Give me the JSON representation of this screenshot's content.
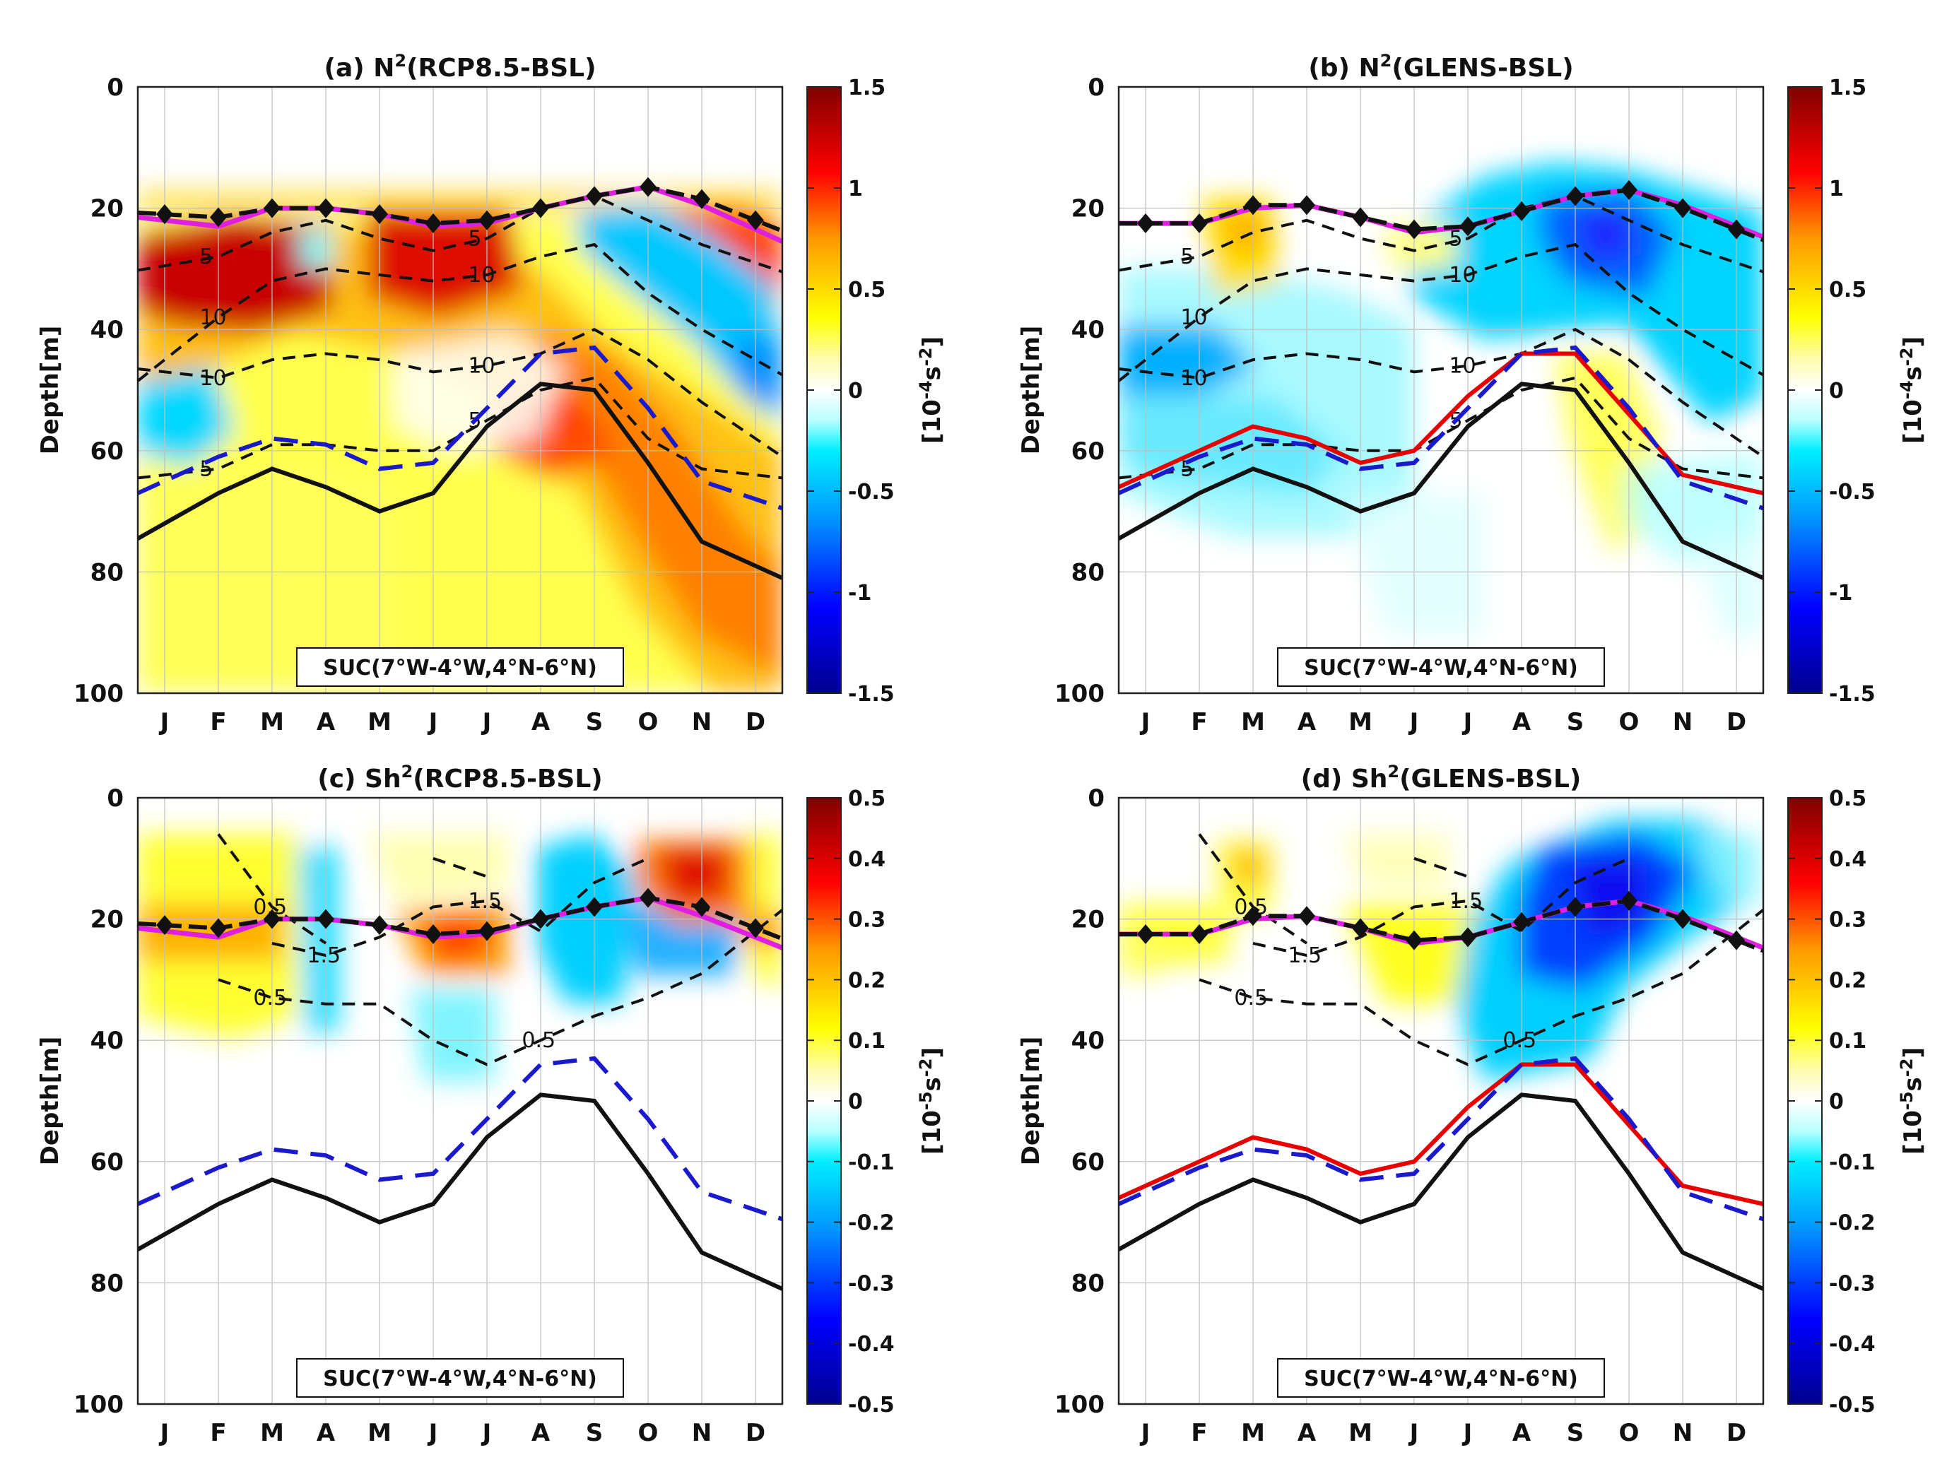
{
  "chart_data": [
    {
      "type": "heatmap",
      "id": "a",
      "title": "(a) N",
      "title_sup": "2",
      "title_rest": "(RCP8.5-BSL)",
      "ylabel": "Depth[m]",
      "months": [
        "J",
        "F",
        "M",
        "A",
        "M",
        "J",
        "J",
        "A",
        "S",
        "O",
        "N",
        "D"
      ],
      "yticks": [
        "0",
        "20",
        "40",
        "60",
        "80",
        "100"
      ],
      "ylim": [
        0,
        100
      ],
      "colorbar": {
        "ticks": [
          "1.5",
          "1",
          "0.5",
          "0",
          "-0.5",
          "-1",
          "-1.5"
        ],
        "range": [
          -1.5,
          1.5
        ],
        "unit_base": "[10",
        "unit_exp": "-4",
        "unit_s": "s",
        "unit_exp2": "-2",
        "unit_close": "]"
      },
      "region_label": "SUC(7°W-4°W,4°N-6°N)",
      "mld_line": [
        21,
        21.5,
        20,
        20,
        21,
        22.5,
        22,
        20,
        18,
        16.5,
        18.5,
        22
      ],
      "mld_magenta": [
        22,
        23,
        20,
        20,
        21,
        23,
        22.5,
        20,
        18,
        16.5,
        19.5,
        23.5
      ],
      "black_line": [
        72,
        67,
        63,
        66,
        70,
        67,
        56,
        49,
        50,
        62,
        75,
        79
      ],
      "blue_dashed": [
        65,
        61,
        58,
        59,
        63,
        62,
        53,
        44,
        43,
        53,
        65,
        68
      ],
      "red_line": null,
      "contours": [
        {
          "label": "5",
          "values": [
            29.5,
            28,
            24,
            22,
            25,
            27,
            25,
            20,
            18,
            22,
            26,
            29
          ]
        },
        {
          "label": "10",
          "values": [
            45,
            38,
            32,
            30,
            31,
            32,
            31,
            28,
            26,
            34,
            40,
            45
          ]
        },
        {
          "label": "10",
          "values": [
            47,
            48,
            45,
            44,
            45,
            47,
            46,
            44,
            40,
            45,
            52,
            58
          ]
        },
        {
          "label": "5",
          "values": [
            64,
            63,
            59,
            59,
            60,
            60,
            55,
            50,
            48,
            58,
            63,
            64
          ]
        }
      ]
    },
    {
      "type": "heatmap",
      "id": "b",
      "title": "(b) N",
      "title_sup": "2",
      "title_rest": "(GLENS-BSL)",
      "ylabel": "Depth[m]",
      "months": [
        "J",
        "F",
        "M",
        "A",
        "M",
        "J",
        "J",
        "A",
        "S",
        "O",
        "N",
        "D"
      ],
      "yticks": [
        "0",
        "20",
        "40",
        "60",
        "80",
        "100"
      ],
      "ylim": [
        0,
        100
      ],
      "colorbar": {
        "ticks": [
          "1.5",
          "1",
          "0.5",
          "0",
          "-0.5",
          "-1",
          "-1.5"
        ],
        "range": [
          -1.5,
          1.5
        ],
        "unit_base": "[10",
        "unit_exp": "-4",
        "unit_s": "s",
        "unit_exp2": "-2",
        "unit_close": "]"
      },
      "region_label": "SUC(7°W-4°W,4°N-6°N)",
      "mld_line": [
        22.5,
        22.5,
        19.5,
        19.5,
        21.5,
        23.5,
        23,
        20.5,
        18,
        17,
        20,
        23.5
      ],
      "mld_magenta": [
        22.5,
        22.5,
        20,
        19.5,
        21.5,
        24,
        23,
        20.5,
        18,
        17,
        19.5,
        23
      ],
      "black_line": [
        72,
        67,
        63,
        66,
        70,
        67,
        56,
        49,
        50,
        62,
        75,
        79
      ],
      "blue_dashed": [
        65,
        61,
        58,
        59,
        63,
        62,
        53,
        44,
        43,
        53,
        65,
        68
      ],
      "red_line": [
        64,
        60,
        56,
        58,
        62,
        60,
        51,
        44,
        44,
        54,
        64,
        66
      ],
      "contours": [
        {
          "label": "5",
          "values": [
            29.5,
            28,
            24,
            22,
            25,
            27,
            25,
            20,
            18,
            22,
            26,
            29
          ]
        },
        {
          "label": "10",
          "values": [
            45,
            38,
            32,
            30,
            31,
            32,
            31,
            28,
            26,
            34,
            40,
            45
          ]
        },
        {
          "label": "10",
          "values": [
            47,
            48,
            45,
            44,
            45,
            47,
            46,
            44,
            40,
            45,
            52,
            58
          ]
        },
        {
          "label": "5",
          "values": [
            64,
            63,
            59,
            59,
            60,
            60,
            55,
            50,
            48,
            58,
            63,
            64
          ]
        }
      ]
    },
    {
      "type": "heatmap",
      "id": "c",
      "title": "(c) Sh",
      "title_sup": "2",
      "title_rest": "(RCP8.5-BSL)",
      "ylabel": "Depth[m]",
      "months": [
        "J",
        "F",
        "M",
        "A",
        "M",
        "J",
        "J",
        "A",
        "S",
        "O",
        "N",
        "D"
      ],
      "yticks": [
        "0",
        "20",
        "40",
        "60",
        "80",
        "100"
      ],
      "ylim": [
        0,
        100
      ],
      "colorbar": {
        "ticks": [
          "0.5",
          "0.4",
          "0.3",
          "0.2",
          "0.1",
          "0",
          "-0.1",
          "-0.2",
          "-0.3",
          "-0.4",
          "-0.5"
        ],
        "range": [
          -0.5,
          0.5
        ],
        "unit_base": "[10",
        "unit_exp": "-5",
        "unit_s": "s",
        "unit_exp2": "-2",
        "unit_close": "]"
      },
      "region_label": "SUC(7°W-4°W,4°N-6°N)",
      "mld_line": [
        21,
        21.5,
        20,
        20,
        21,
        22.5,
        22,
        20,
        18,
        16.5,
        18,
        21.5
      ],
      "mld_magenta": [
        22,
        23,
        20,
        20,
        21,
        23,
        22.5,
        20,
        18,
        16.5,
        19.5,
        23
      ],
      "black_line": [
        72,
        67,
        63,
        66,
        70,
        67,
        56,
        49,
        50,
        62,
        75,
        79
      ],
      "blue_dashed": [
        65,
        61,
        58,
        59,
        63,
        62,
        53,
        44,
        43,
        53,
        65,
        68
      ],
      "red_line": null,
      "contours": [
        {
          "label": "0.5",
          "values": [
            null,
            6,
            18,
            24,
            null,
            10,
            13,
            null,
            null,
            null,
            null,
            null
          ]
        },
        {
          "label": "1.5",
          "values": [
            null,
            null,
            24,
            26,
            23,
            18,
            17,
            22,
            14,
            10,
            null,
            null
          ]
        },
        {
          "label": "0.5",
          "values": [
            null,
            30,
            33,
            34,
            34,
            40,
            44,
            40,
            36,
            33,
            29,
            22
          ]
        }
      ]
    },
    {
      "type": "heatmap",
      "id": "d",
      "title": "(d) Sh",
      "title_sup": "2",
      "title_rest": "(GLENS-BSL)",
      "ylabel": "Depth[m]",
      "months": [
        "J",
        "F",
        "M",
        "A",
        "M",
        "J",
        "J",
        "A",
        "S",
        "O",
        "N",
        "D"
      ],
      "yticks": [
        "0",
        "20",
        "40",
        "60",
        "80",
        "100"
      ],
      "ylim": [
        0,
        100
      ],
      "colorbar": {
        "ticks": [
          "0.5",
          "0.4",
          "0.3",
          "0.2",
          "0.1",
          "0",
          "-0.1",
          "-0.2",
          "-0.3",
          "-0.4",
          "-0.5"
        ],
        "range": [
          -0.5,
          0.5
        ],
        "unit_base": "[10",
        "unit_exp": "-5",
        "unit_s": "s",
        "unit_exp2": "-2",
        "unit_close": "]"
      },
      "region_label": "SUC(7°W-4°W,4°N-6°N)",
      "mld_line": [
        22.5,
        22.5,
        19.5,
        19.5,
        21.5,
        23.5,
        23,
        20.5,
        18,
        17,
        20,
        23.5
      ],
      "mld_magenta": [
        22.5,
        22.5,
        20,
        19.5,
        21.5,
        24,
        23,
        20.5,
        18,
        17,
        19.5,
        23
      ],
      "black_line": [
        72,
        67,
        63,
        66,
        70,
        67,
        56,
        49,
        50,
        62,
        75,
        79
      ],
      "blue_dashed": [
        65,
        61,
        58,
        59,
        63,
        62,
        53,
        44,
        43,
        53,
        65,
        68
      ],
      "red_line": [
        64,
        60,
        56,
        58,
        62,
        60,
        51,
        44,
        44,
        54,
        64,
        66
      ],
      "contours": [
        {
          "label": "0.5",
          "values": [
            null,
            6,
            18,
            24,
            null,
            10,
            13,
            null,
            null,
            null,
            null,
            null
          ]
        },
        {
          "label": "1.5",
          "values": [
            null,
            null,
            24,
            26,
            23,
            18,
            17,
            22,
            14,
            10,
            null,
            null
          ]
        },
        {
          "label": "0.5",
          "values": [
            null,
            30,
            33,
            34,
            34,
            40,
            44,
            40,
            36,
            33,
            29,
            22
          ]
        }
      ]
    }
  ]
}
